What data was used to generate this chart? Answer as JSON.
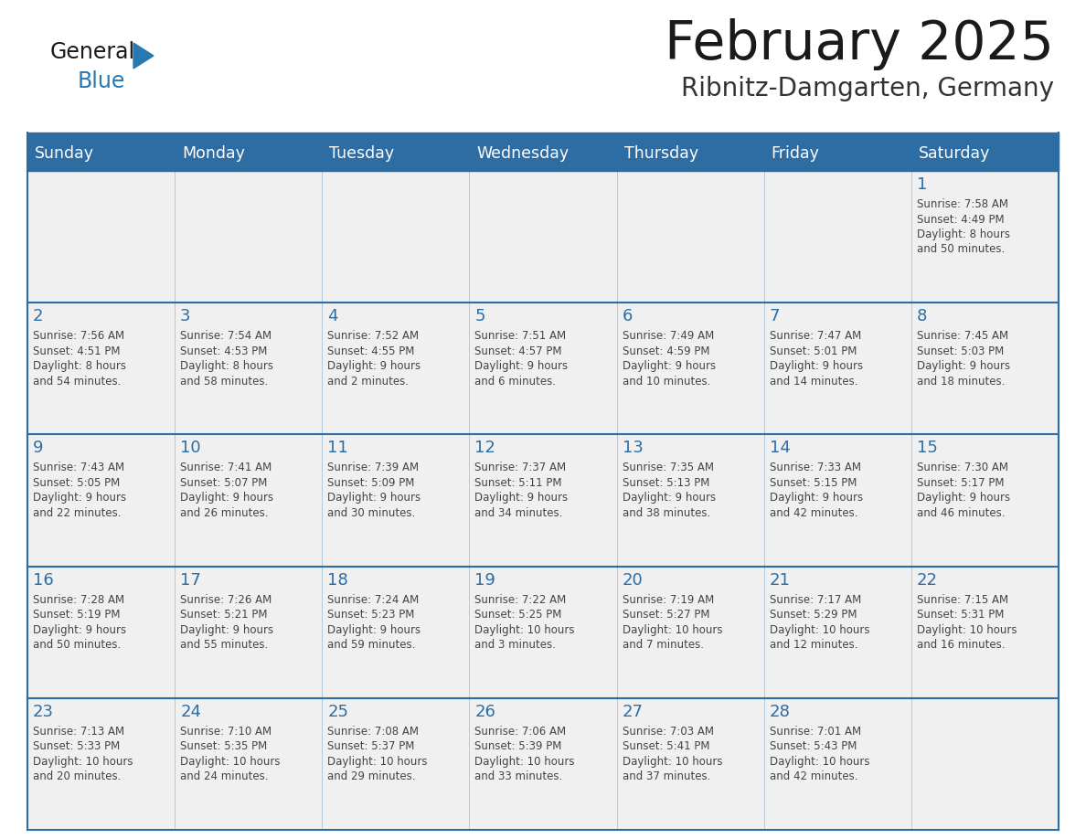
{
  "title": "February 2025",
  "subtitle": "Ribnitz-Damgarten, Germany",
  "days_of_week": [
    "Sunday",
    "Monday",
    "Tuesday",
    "Wednesday",
    "Thursday",
    "Friday",
    "Saturday"
  ],
  "header_bg": "#2E6DA4",
  "header_text": "#FFFFFF",
  "cell_bg": "#F0F0F0",
  "border_color": "#2E6DA4",
  "day_number_color": "#2E6DA4",
  "text_color": "#444444",
  "title_color": "#1a1a1a",
  "subtitle_color": "#333333",
  "background_color": "#FFFFFF",
  "logo_text_color": "#1a1a1a",
  "logo_blue_color": "#2878B4",
  "calendar_data": {
    "1": {
      "sunrise": "7:58 AM",
      "sunset": "4:49 PM",
      "daylight_h": "8 hours",
      "daylight_m": "and 50 minutes."
    },
    "2": {
      "sunrise": "7:56 AM",
      "sunset": "4:51 PM",
      "daylight_h": "8 hours",
      "daylight_m": "and 54 minutes."
    },
    "3": {
      "sunrise": "7:54 AM",
      "sunset": "4:53 PM",
      "daylight_h": "8 hours",
      "daylight_m": "and 58 minutes."
    },
    "4": {
      "sunrise": "7:52 AM",
      "sunset": "4:55 PM",
      "daylight_h": "9 hours",
      "daylight_m": "and 2 minutes."
    },
    "5": {
      "sunrise": "7:51 AM",
      "sunset": "4:57 PM",
      "daylight_h": "9 hours",
      "daylight_m": "and 6 minutes."
    },
    "6": {
      "sunrise": "7:49 AM",
      "sunset": "4:59 PM",
      "daylight_h": "9 hours",
      "daylight_m": "and 10 minutes."
    },
    "7": {
      "sunrise": "7:47 AM",
      "sunset": "5:01 PM",
      "daylight_h": "9 hours",
      "daylight_m": "and 14 minutes."
    },
    "8": {
      "sunrise": "7:45 AM",
      "sunset": "5:03 PM",
      "daylight_h": "9 hours",
      "daylight_m": "and 18 minutes."
    },
    "9": {
      "sunrise": "7:43 AM",
      "sunset": "5:05 PM",
      "daylight_h": "9 hours",
      "daylight_m": "and 22 minutes."
    },
    "10": {
      "sunrise": "7:41 AM",
      "sunset": "5:07 PM",
      "daylight_h": "9 hours",
      "daylight_m": "and 26 minutes."
    },
    "11": {
      "sunrise": "7:39 AM",
      "sunset": "5:09 PM",
      "daylight_h": "9 hours",
      "daylight_m": "and 30 minutes."
    },
    "12": {
      "sunrise": "7:37 AM",
      "sunset": "5:11 PM",
      "daylight_h": "9 hours",
      "daylight_m": "and 34 minutes."
    },
    "13": {
      "sunrise": "7:35 AM",
      "sunset": "5:13 PM",
      "daylight_h": "9 hours",
      "daylight_m": "and 38 minutes."
    },
    "14": {
      "sunrise": "7:33 AM",
      "sunset": "5:15 PM",
      "daylight_h": "9 hours",
      "daylight_m": "and 42 minutes."
    },
    "15": {
      "sunrise": "7:30 AM",
      "sunset": "5:17 PM",
      "daylight_h": "9 hours",
      "daylight_m": "and 46 minutes."
    },
    "16": {
      "sunrise": "7:28 AM",
      "sunset": "5:19 PM",
      "daylight_h": "9 hours",
      "daylight_m": "and 50 minutes."
    },
    "17": {
      "sunrise": "7:26 AM",
      "sunset": "5:21 PM",
      "daylight_h": "9 hours",
      "daylight_m": "and 55 minutes."
    },
    "18": {
      "sunrise": "7:24 AM",
      "sunset": "5:23 PM",
      "daylight_h": "9 hours",
      "daylight_m": "and 59 minutes."
    },
    "19": {
      "sunrise": "7:22 AM",
      "sunset": "5:25 PM",
      "daylight_h": "10 hours",
      "daylight_m": "and 3 minutes."
    },
    "20": {
      "sunrise": "7:19 AM",
      "sunset": "5:27 PM",
      "daylight_h": "10 hours",
      "daylight_m": "and 7 minutes."
    },
    "21": {
      "sunrise": "7:17 AM",
      "sunset": "5:29 PM",
      "daylight_h": "10 hours",
      "daylight_m": "and 12 minutes."
    },
    "22": {
      "sunrise": "7:15 AM",
      "sunset": "5:31 PM",
      "daylight_h": "10 hours",
      "daylight_m": "and 16 minutes."
    },
    "23": {
      "sunrise": "7:13 AM",
      "sunset": "5:33 PM",
      "daylight_h": "10 hours",
      "daylight_m": "and 20 minutes."
    },
    "24": {
      "sunrise": "7:10 AM",
      "sunset": "5:35 PM",
      "daylight_h": "10 hours",
      "daylight_m": "and 24 minutes."
    },
    "25": {
      "sunrise": "7:08 AM",
      "sunset": "5:37 PM",
      "daylight_h": "10 hours",
      "daylight_m": "and 29 minutes."
    },
    "26": {
      "sunrise": "7:06 AM",
      "sunset": "5:39 PM",
      "daylight_h": "10 hours",
      "daylight_m": "and 33 minutes."
    },
    "27": {
      "sunrise": "7:03 AM",
      "sunset": "5:41 PM",
      "daylight_h": "10 hours",
      "daylight_m": "and 37 minutes."
    },
    "28": {
      "sunrise": "7:01 AM",
      "sunset": "5:43 PM",
      "daylight_h": "10 hours",
      "daylight_m": "and 42 minutes."
    }
  },
  "week_layout": [
    [
      null,
      null,
      null,
      null,
      null,
      null,
      "1"
    ],
    [
      "2",
      "3",
      "4",
      "5",
      "6",
      "7",
      "8"
    ],
    [
      "9",
      "10",
      "11",
      "12",
      "13",
      "14",
      "15"
    ],
    [
      "16",
      "17",
      "18",
      "19",
      "20",
      "21",
      "22"
    ],
    [
      "23",
      "24",
      "25",
      "26",
      "27",
      "28",
      null
    ]
  ]
}
